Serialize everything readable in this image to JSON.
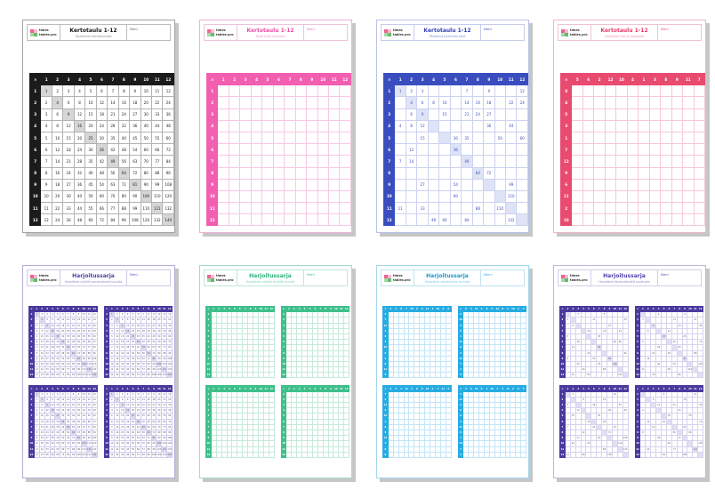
{
  "corner": "×",
  "name_label": "Nimi",
  "logo": {
    "line1": "times",
    "line2": "tables.pro"
  },
  "shadow_color": "#c6c6c6",
  "pages": [
    {
      "title": "Kertotaulu 1-12",
      "subtitle": "Täydellinen kertotaulukko",
      "layout": "single",
      "theme": {
        "accent": "#1b1b1b",
        "line": "#b3b3b3",
        "diag": "#d6d6d6",
        "val": "#222222",
        "page_border": "#a3a3a3",
        "title_color": "#141414",
        "sub_color": "#8a8a8a",
        "head_border": "#bdbdbd",
        "nimi_color": "#5a5a5a"
      },
      "grids": [
        {
          "mode": "full",
          "diagonal": true
        }
      ]
    },
    {
      "title": "Kertotaulu 1-12",
      "subtitle": "Täytä tyhjä ruudukko",
      "layout": "single",
      "theme": {
        "accent": "#f25fb0",
        "line": "#f8c8e4",
        "diag": "#fde8f4",
        "val": "#f25fb0",
        "page_border": "#f2afd6",
        "title_color": "#ee4da6",
        "sub_color": "#f48fc4",
        "head_border": "#eec3dc",
        "nimi_color": "#f06ab5"
      },
      "grids": [
        {
          "mode": "empty",
          "diagonal": false
        }
      ]
    },
    {
      "title": "Kertotaulu 1-12",
      "subtitle": "Täydennä puuttuvat tulot",
      "layout": "single",
      "theme": {
        "accent": "#3a4dbe",
        "line": "#ccd3ef",
        "diag": "#dfe3f7",
        "val": "#3a4dbe",
        "page_border": "#b9c2e6",
        "title_color": "#3040b8",
        "sub_color": "#7f8cd6",
        "head_border": "#c6cdeb",
        "nimi_color": "#3a4dbe"
      },
      "grids": [
        {
          "mode": "partial",
          "diagonal": true,
          "filled": {
            "1": [
              1,
              2,
              3,
              7,
              9,
              12
            ],
            "2": [
              2,
              3,
              4,
              5,
              7,
              8,
              9,
              11,
              12
            ],
            "3": [
              2,
              3,
              5,
              7,
              8,
              9
            ],
            "4": [
              1,
              2,
              3,
              9,
              11
            ],
            "5": [
              3,
              6,
              7,
              10,
              12
            ],
            "6": [
              2,
              6
            ],
            "7": [
              1,
              2,
              7
            ],
            "8": [
              8,
              9
            ],
            "9": [
              3,
              6,
              11
            ],
            "10": [
              6,
              11
            ],
            "11": [
              1,
              3,
              8,
              10
            ],
            "12": [
              4,
              5,
              7,
              11
            ]
          }
        }
      ]
    },
    {
      "title": "Kertotaulu 1-12",
      "subtitle": "Sekoitetut rivit ja sarakkeet",
      "layout": "single",
      "theme": {
        "accent": "#e94a70",
        "line": "#f6c9d4",
        "diag": "#fdeef2",
        "val": "#e94a70",
        "page_border": "#efb6c4",
        "title_color": "#e63a64",
        "sub_color": "#f08ca6",
        "head_border": "#f0c4cf",
        "nimi_color": "#e94a70"
      },
      "grids": [
        {
          "mode": "empty",
          "diagonal": false,
          "cols": [
            5,
            6,
            2,
            12,
            10,
            4,
            1,
            3,
            8,
            9,
            11,
            7
          ],
          "rows": [
            8,
            4,
            5,
            3,
            1,
            7,
            12,
            9,
            6,
            11,
            2,
            10
          ]
        }
      ]
    },
    {
      "title": "Harjoitussarja",
      "subtitle": "Harjoittele neljällä samanlaisella taululla",
      "layout": "quad",
      "theme": {
        "accent": "#4a3a9e",
        "line": "#d3cdea",
        "diag": "#dfd9f2",
        "val": "#56566a",
        "page_border": "#b3abd8",
        "title_color": "#5040a8",
        "sub_color": "#9089c6",
        "head_border": "#cfc9e6",
        "nimi_color": "#5a4ab0"
      },
      "grids": [
        {
          "mode": "full",
          "diagonal": true
        },
        {
          "mode": "full",
          "diagonal": true
        },
        {
          "mode": "full",
          "diagonal": true
        },
        {
          "mode": "full",
          "diagonal": true
        }
      ]
    },
    {
      "title": "Harjoitussarja",
      "subtitle": "Harjoittele neljällä tyhjällä taululla",
      "layout": "quad",
      "theme": {
        "accent": "#3fbf8a",
        "line": "#c6ead9",
        "diag": "#e9f7f0",
        "val": "#3fbf8a",
        "page_border": "#a2dcc4",
        "title_color": "#2bb37a",
        "sub_color": "#7fd2ae",
        "head_border": "#c2e6d6",
        "nimi_color": "#3fbf8a"
      },
      "grids": [
        {
          "mode": "empty",
          "diagonal": false
        },
        {
          "mode": "empty",
          "diagonal": false
        },
        {
          "mode": "empty",
          "diagonal": false
        },
        {
          "mode": "empty",
          "diagonal": false
        }
      ]
    },
    {
      "title": "Harjoitussarja",
      "subtitle": "Harjoittele sekoitetuilla tauluilla",
      "layout": "quad",
      "theme": {
        "accent": "#27ace2",
        "line": "#c2e5f6",
        "diag": "#e8f5fc",
        "val": "#27ace2",
        "page_border": "#9fd6ee",
        "title_color": "#1899d2",
        "sub_color": "#7cc8ea",
        "head_border": "#bfe2f2",
        "nimi_color": "#27ace2"
      },
      "grids": [
        {
          "mode": "empty",
          "diagonal": false,
          "cols": [
            4,
            1,
            8,
            7,
            10,
            2,
            5,
            11,
            3,
            12,
            6,
            9
          ],
          "rows": [
            4,
            7,
            12,
            1,
            9,
            3,
            10,
            6,
            2,
            8,
            11,
            5
          ]
        },
        {
          "mode": "empty",
          "diagonal": false,
          "cols": [
            6,
            3,
            11,
            2,
            9,
            5,
            12,
            8,
            1,
            10,
            4,
            7
          ],
          "rows": [
            2,
            10,
            5,
            8,
            1,
            11,
            6,
            3,
            12,
            7,
            4,
            9
          ]
        },
        {
          "mode": "empty",
          "diagonal": false,
          "cols": [
            9,
            5,
            1,
            12,
            3,
            8,
            6,
            10,
            2,
            7,
            11,
            4
          ],
          "rows": [
            7,
            2,
            11,
            4,
            10,
            1,
            8,
            5,
            12,
            3,
            6,
            9
          ]
        },
        {
          "mode": "empty",
          "diagonal": false,
          "cols": [
            3,
            8,
            12,
            6,
            1,
            10,
            7,
            4,
            11,
            2,
            9,
            5
          ],
          "rows": [
            5,
            12,
            3,
            9,
            6,
            2,
            11,
            8,
            1,
            10,
            7,
            4
          ]
        }
      ]
    },
    {
      "title": "Harjoitussarja",
      "subtitle": "Harjoittele täydentämällä puuttuvat",
      "layout": "quad",
      "theme": {
        "accent": "#4a3a9e",
        "line": "#d8d3ec",
        "diag": "#e3def4",
        "val": "#5e5e72",
        "page_border": "#beb7dc",
        "title_color": "#5040a8",
        "sub_color": "#9089c6",
        "head_border": "#d2cde8",
        "nimi_color": "#5a4ab0"
      },
      "grids": [
        {
          "mode": "partial",
          "diagonal": true,
          "filled": {
            "1": [
              3,
              8
            ],
            "2": [
              1,
              6,
              12
            ],
            "3": [
              2,
              9
            ],
            "4": [
              5,
              8,
              11
            ],
            "5": [
              1,
              7
            ],
            "6": [
              3,
              10,
              11
            ],
            "7": [
              2,
              7
            ],
            "8": [
              5,
              12
            ],
            "9": [
              1,
              6,
              9
            ],
            "10": [
              3,
              7,
              10
            ],
            "11": [
              4,
              8
            ],
            "12": [
              2,
              5,
              11
            ]
          }
        },
        {
          "mode": "partial",
          "diagonal": true,
          "filled": {
            "1": [
              4,
              9
            ],
            "2": [
              1,
              7,
              11
            ],
            "3": [
              3,
              8,
              12
            ],
            "4": [
              2,
              6
            ],
            "5": [
              5,
              9
            ],
            "6": [
              1,
              7,
              12
            ],
            "7": [
              4,
              8
            ],
            "8": [
              3,
              6,
              11
            ],
            "9": [
              2,
              9
            ],
            "10": [
              4,
              7,
              12
            ],
            "11": [
              1,
              6,
              10
            ],
            "12": [
              3,
              8
            ]
          }
        },
        {
          "mode": "partial",
          "diagonal": true,
          "filled": {
            "1": [
              2,
              10
            ],
            "2": [
              4,
              8
            ],
            "3": [
              1,
              6,
              11
            ],
            "4": [
              3,
              9,
              12
            ],
            "5": [
              2,
              7
            ],
            "6": [
              5,
              8
            ],
            "7": [
              1,
              6,
              10
            ],
            "8": [
              4,
              9
            ],
            "9": [
              3,
              7,
              12
            ],
            "10": [
              2,
              5,
              11
            ],
            "11": [
              8,
              12
            ],
            "12": [
              1,
              4,
              9
            ]
          }
        },
        {
          "mode": "partial",
          "diagonal": true,
          "filled": {
            "1": [
              5,
              11
            ],
            "2": [
              3,
              9
            ],
            "3": [
              4,
              7,
              12
            ],
            "4": [
              1,
              8
            ],
            "5": [
              6,
              10
            ],
            "6": [
              2,
              5,
              12
            ],
            "7": [
              3,
              9
            ],
            "8": [
              1,
              7,
              10
            ],
            "9": [
              4,
              8
            ],
            "10": [
              6,
              12
            ],
            "11": [
              2,
              7,
              11
            ],
            "12": [
              5,
              9
            ]
          }
        }
      ]
    }
  ]
}
